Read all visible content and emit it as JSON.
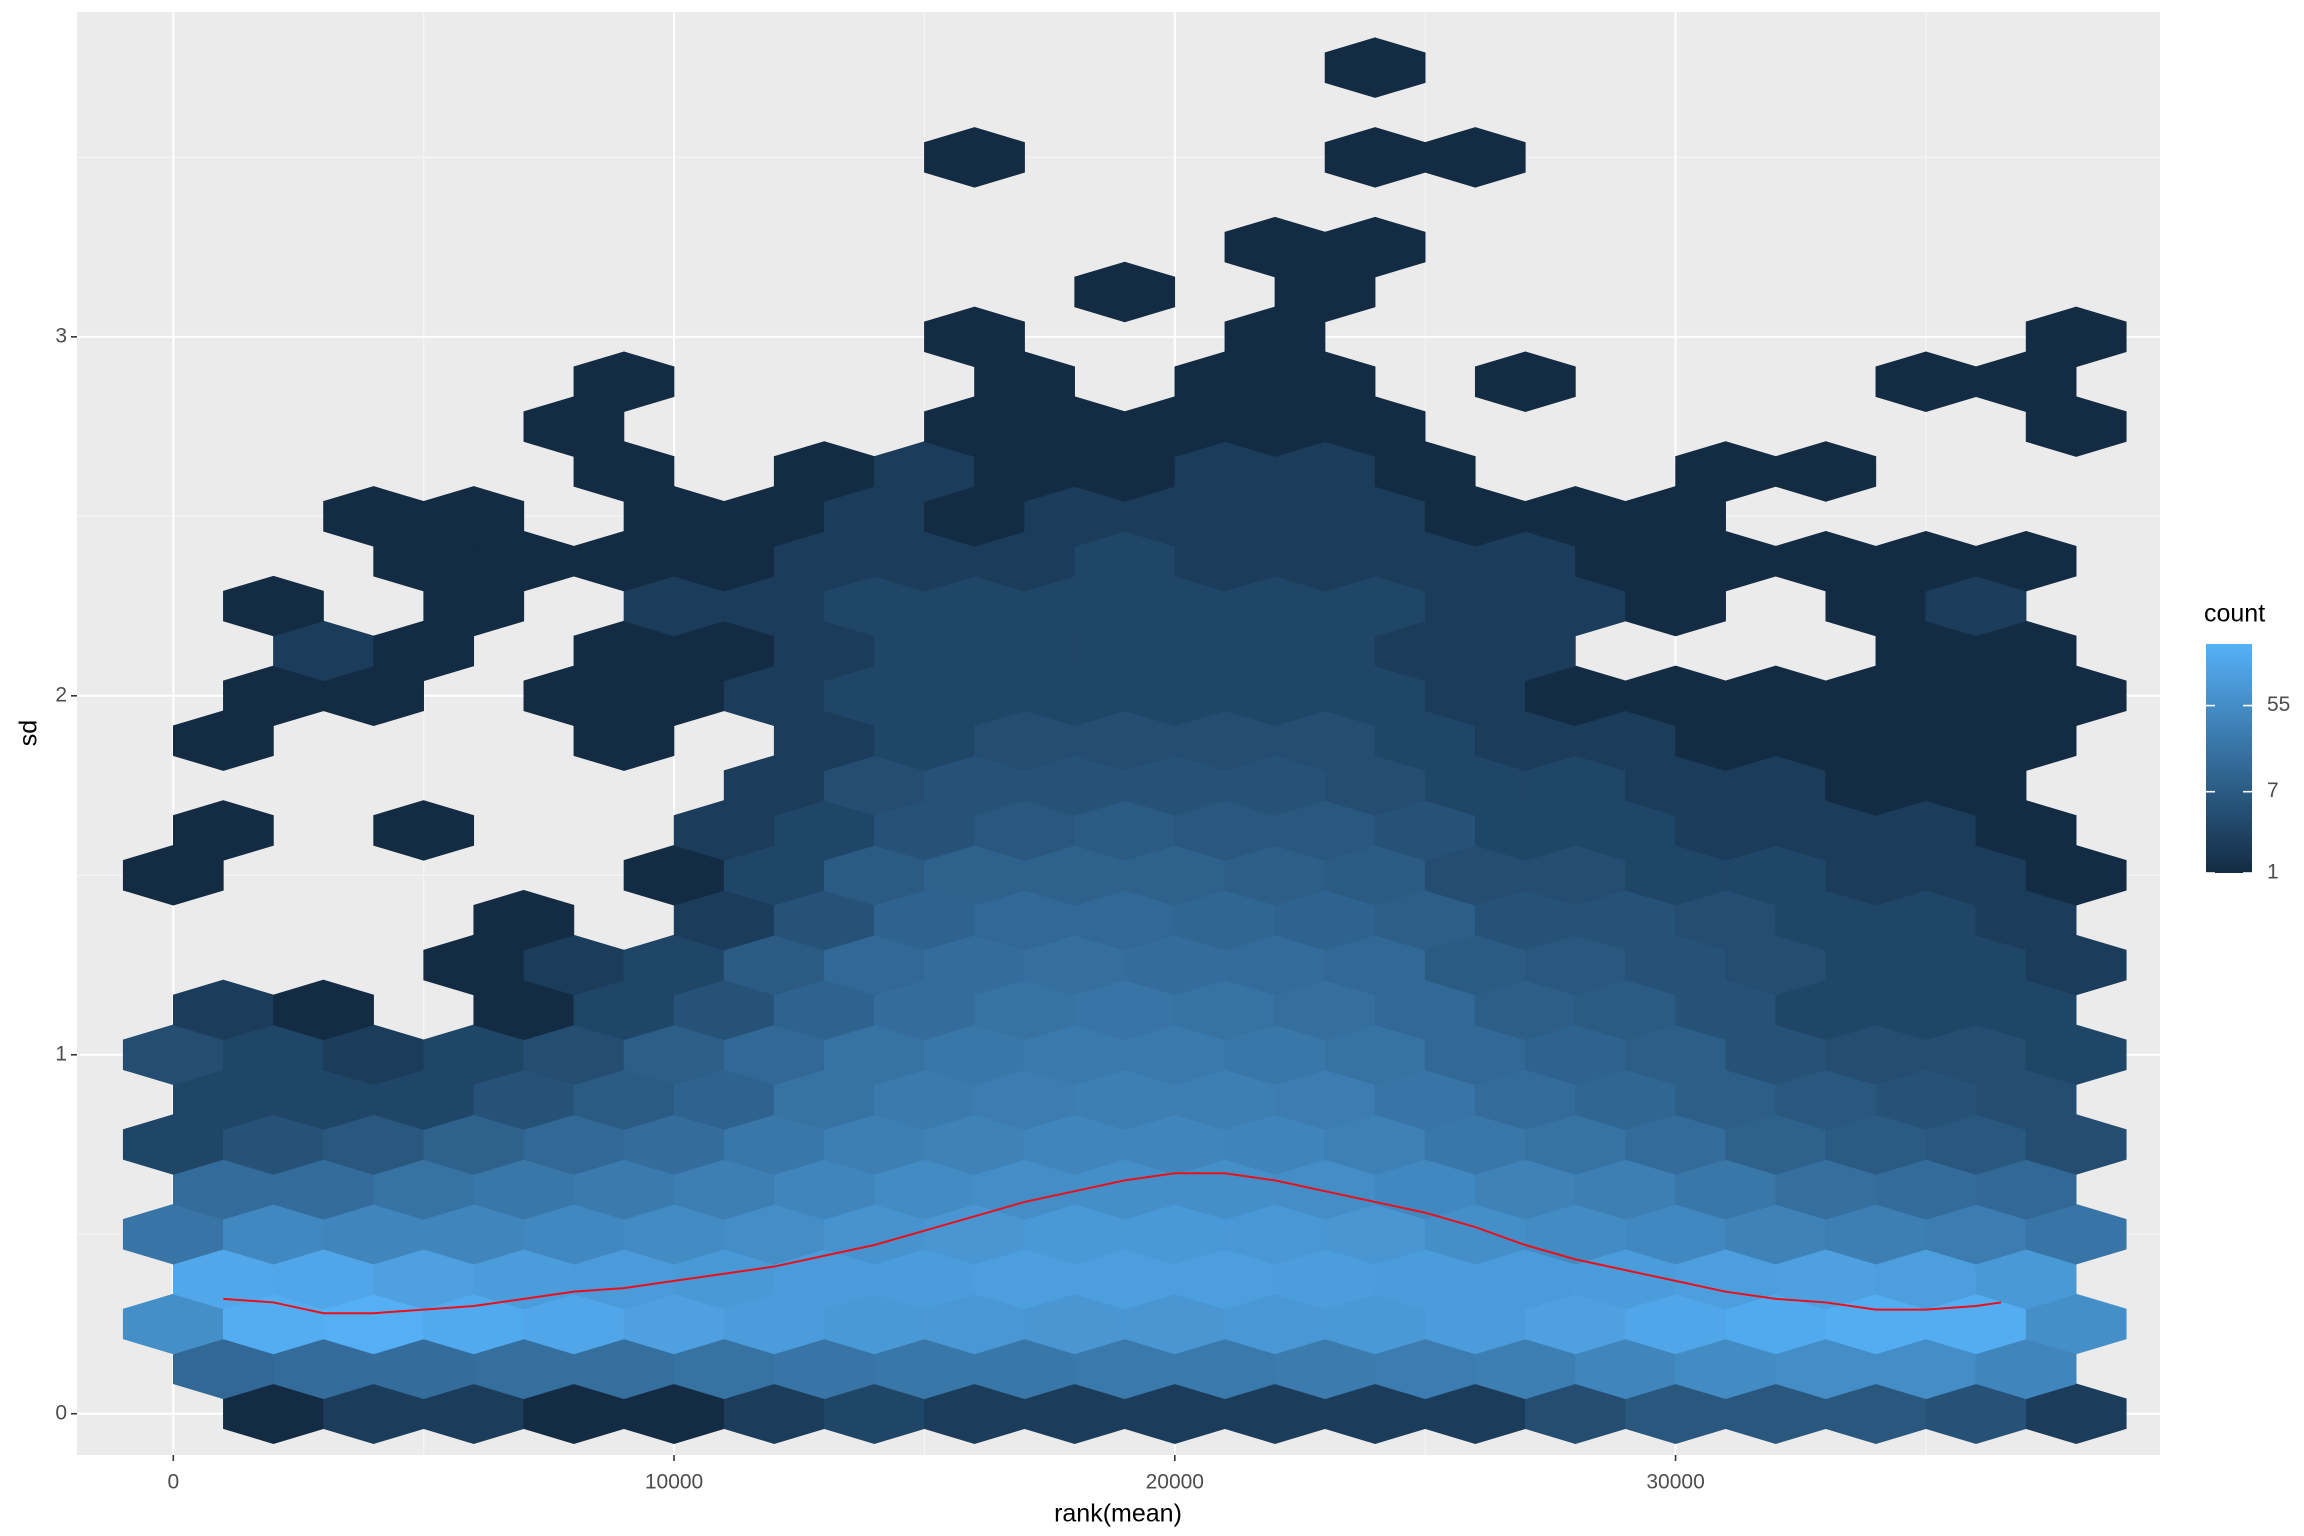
{
  "chart_data": {
    "type": "hexbin",
    "x_label": "rank(mean)",
    "y_label": "sd",
    "xlim": [
      -1923,
      39674
    ],
    "ylim": [
      -0.115,
      3.905
    ],
    "xticks": [
      0,
      10000,
      20000,
      30000
    ],
    "yticks": [
      0,
      1,
      2,
      3
    ],
    "minor_xticks": [
      5000,
      15000,
      25000,
      35000
    ],
    "minor_yticks": [
      0.5,
      1.5,
      2.5,
      3.5
    ],
    "grid": true,
    "y": [
      0,
      0.125,
      0.25,
      0.375,
      0.5,
      0.625,
      0.75,
      0.875,
      1,
      1.125,
      1.25,
      1.375,
      1.5,
      1.625,
      1.75,
      1.875,
      2,
      2.125,
      2.25,
      2.375,
      2.5,
      2.625,
      2.75,
      2.875,
      3,
      3.125,
      3.25,
      3.375,
      3.5,
      3.625,
      3.75
    ],
    "x_even": [
      0,
      2000,
      4000,
      6000,
      8000,
      10000,
      12000,
      14000,
      16000,
      18000,
      20000,
      22000,
      24000,
      26000,
      28000,
      30000,
      32000,
      34000,
      36000,
      38000
    ],
    "x_odd": [
      1000,
      3000,
      5000,
      7000,
      9000,
      11000,
      13000,
      15000,
      17000,
      19000,
      21000,
      23000,
      25000,
      27000,
      29000,
      31000,
      33000,
      35000,
      37000
    ],
    "counts": [
      [
        null,
        1,
        2,
        2,
        1,
        1,
        2,
        3,
        2,
        2,
        2,
        2,
        2,
        2,
        4,
        6,
        6,
        6,
        5,
        2
      ],
      [
        12,
        14,
        15,
        16,
        16,
        18,
        20,
        22,
        22,
        24,
        24,
        26,
        28,
        30,
        40,
        50,
        55,
        55,
        40
      ],
      [
        60,
        200,
        220,
        180,
        150,
        120,
        100,
        90,
        85,
        80,
        80,
        85,
        90,
        100,
        120,
        150,
        180,
        200,
        200,
        60
      ],
      [
        160,
        150,
        120,
        100,
        95,
        90,
        95,
        100,
        110,
        110,
        110,
        105,
        100,
        95,
        100,
        110,
        120,
        110,
        90
      ],
      [
        20,
        45,
        40,
        40,
        45,
        50,
        55,
        70,
        80,
        90,
        90,
        85,
        80,
        60,
        50,
        45,
        35,
        30,
        28,
        20
      ],
      [
        14,
        14,
        18,
        22,
        25,
        30,
        40,
        50,
        55,
        60,
        60,
        55,
        45,
        35,
        30,
        22,
        16,
        14,
        12
      ],
      [
        3,
        5,
        6,
        9,
        12,
        15,
        22,
        30,
        35,
        40,
        40,
        38,
        32,
        22,
        18,
        14,
        9,
        7,
        6,
        4
      ],
      [
        3,
        3,
        3,
        5,
        7,
        10,
        18,
        25,
        28,
        30,
        30,
        28,
        20,
        14,
        11,
        8,
        6,
        5,
        4
      ],
      [
        4,
        3,
        2,
        3,
        4,
        8,
        12,
        18,
        22,
        24,
        24,
        22,
        18,
        12,
        10,
        8,
        5,
        4,
        4,
        3
      ],
      [
        2,
        1,
        null,
        1,
        3,
        5,
        10,
        15,
        18,
        20,
        18,
        16,
        12,
        8,
        7,
        5,
        3,
        3,
        3
      ],
      [
        null,
        null,
        null,
        1,
        2,
        3,
        7,
        12,
        15,
        16,
        15,
        14,
        12,
        7,
        6,
        5,
        4,
        3,
        3,
        2
      ],
      [
        null,
        null,
        null,
        1,
        null,
        2,
        5,
        10,
        12,
        12,
        11,
        10,
        8,
        5,
        5,
        4,
        3,
        3,
        2
      ],
      [
        1,
        null,
        null,
        null,
        null,
        1,
        3,
        7,
        9,
        9,
        9,
        8,
        7,
        4,
        4,
        3,
        3,
        2,
        2,
        1
      ],
      [
        1,
        null,
        1,
        null,
        null,
        2,
        3,
        5,
        6,
        7,
        6,
        6,
        5,
        3,
        3,
        2,
        2,
        2,
        1
      ],
      [
        null,
        null,
        null,
        null,
        null,
        null,
        2,
        4,
        5,
        5,
        5,
        5,
        4,
        3,
        3,
        2,
        2,
        1,
        1,
        null
      ],
      [
        1,
        null,
        null,
        null,
        1,
        null,
        2,
        3,
        4,
        4,
        4,
        4,
        3,
        2,
        2,
        1,
        1,
        1,
        1
      ],
      [
        null,
        1,
        1,
        null,
        1,
        1,
        2,
        3,
        3,
        3,
        3,
        3,
        3,
        2,
        1,
        1,
        1,
        1,
        1,
        1
      ],
      [
        null,
        2,
        1,
        null,
        1,
        1,
        2,
        3,
        3,
        3,
        3,
        3,
        2,
        2,
        null,
        null,
        null,
        1,
        1
      ],
      [
        null,
        1,
        null,
        1,
        null,
        2,
        2,
        3,
        3,
        3,
        3,
        3,
        3,
        2,
        2,
        1,
        null,
        1,
        2,
        null
      ],
      [
        null,
        null,
        1,
        1,
        1,
        1,
        2,
        2,
        2,
        3,
        2,
        2,
        2,
        2,
        1,
        1,
        1,
        1,
        1
      ],
      [
        null,
        null,
        1,
        1,
        null,
        1,
        1,
        2,
        1,
        2,
        2,
        2,
        2,
        1,
        1,
        1,
        null,
        null,
        null,
        null
      ],
      [
        null,
        null,
        null,
        null,
        1,
        null,
        1,
        2,
        1,
        1,
        2,
        2,
        1,
        null,
        null,
        1,
        1,
        null,
        null
      ],
      [
        null,
        null,
        null,
        null,
        1,
        null,
        null,
        null,
        1,
        1,
        1,
        1,
        1,
        null,
        null,
        null,
        null,
        null,
        null,
        1
      ],
      [
        null,
        null,
        null,
        null,
        1,
        null,
        null,
        null,
        1,
        null,
        1,
        1,
        null,
        1,
        null,
        null,
        null,
        1,
        1
      ],
      [
        null,
        null,
        null,
        null,
        null,
        null,
        null,
        null,
        1,
        null,
        null,
        1,
        null,
        null,
        null,
        null,
        null,
        null,
        null,
        1
      ],
      [
        null,
        null,
        null,
        null,
        null,
        null,
        null,
        null,
        null,
        1,
        null,
        1,
        null,
        null,
        null,
        null,
        null,
        null,
        null
      ],
      [
        null,
        null,
        null,
        null,
        null,
        null,
        null,
        null,
        null,
        null,
        null,
        1,
        1,
        null,
        null,
        null,
        null,
        null,
        null,
        null
      ],
      [
        null,
        null,
        null,
        null,
        null,
        null,
        null,
        null,
        null,
        null,
        null,
        null,
        null,
        null,
        null,
        null,
        null,
        null,
        null
      ],
      [
        null,
        null,
        null,
        null,
        null,
        null,
        null,
        null,
        1,
        null,
        null,
        null,
        1,
        1,
        null,
        null,
        null,
        null,
        null,
        null
      ],
      [
        null,
        null,
        null,
        null,
        null,
        null,
        null,
        null,
        null,
        null,
        null,
        null,
        null,
        null,
        null,
        null,
        null,
        null,
        null
      ],
      [
        null,
        null,
        null,
        null,
        null,
        null,
        null,
        null,
        null,
        null,
        null,
        null,
        1,
        null,
        null,
        null,
        null,
        null,
        null,
        null
      ]
    ],
    "fill_scale": {
      "title": "count",
      "log": true,
      "lim": [
        1,
        240
      ],
      "ticks": [
        1,
        7,
        55
      ],
      "low": "#132B43",
      "high": "#56B1F7"
    },
    "line": {
      "color": "#E8101A",
      "x": [
        1000,
        2000,
        3000,
        4000,
        5000,
        6000,
        7000,
        8000,
        9000,
        10000,
        11000,
        12000,
        13000,
        14000,
        15000,
        16000,
        17000,
        18000,
        19000,
        20000,
        21000,
        22000,
        23000,
        24000,
        25000,
        26000,
        27000,
        28000,
        29000,
        30000,
        31000,
        32000,
        33000,
        34000,
        35000,
        36000,
        36500
      ],
      "y": [
        0.32,
        0.31,
        0.28,
        0.28,
        0.29,
        0.3,
        0.32,
        0.34,
        0.35,
        0.37,
        0.39,
        0.41,
        0.44,
        0.47,
        0.51,
        0.55,
        0.59,
        0.62,
        0.65,
        0.67,
        0.67,
        0.65,
        0.62,
        0.59,
        0.56,
        0.52,
        0.47,
        0.43,
        0.4,
        0.37,
        0.34,
        0.32,
        0.31,
        0.29,
        0.29,
        0.3,
        0.31
      ]
    }
  }
}
